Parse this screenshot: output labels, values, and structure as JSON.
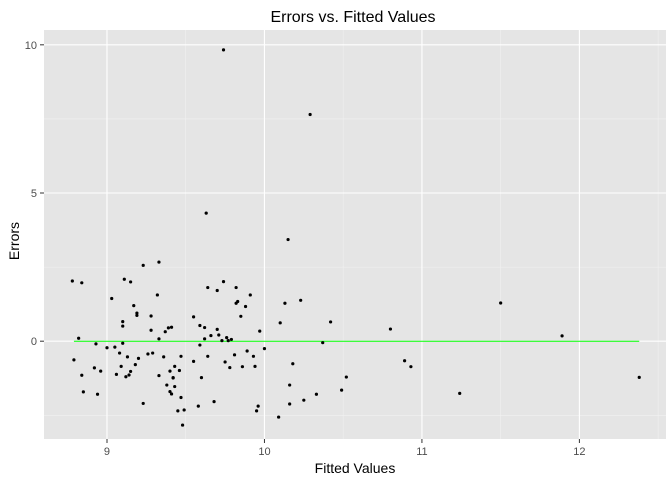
{
  "chart_data": {
    "type": "scatter",
    "title": "Errors vs. Fitted Values",
    "xlabel": "Fitted Values",
    "ylabel": "Errors",
    "xlim": [
      8.6,
      12.55
    ],
    "ylim": [
      -3.3,
      10.5
    ],
    "x_ticks": [
      9,
      10,
      11,
      12
    ],
    "y_ticks": [
      0,
      5,
      10
    ],
    "grid": true,
    "background": "#e5e5e5",
    "point_color": "#000000",
    "reference_line": {
      "y": 0,
      "x_from": 8.79,
      "x_to": 12.38,
      "color": "#00ff00"
    },
    "points": [
      [
        8.78,
        2.03
      ],
      [
        8.79,
        -0.63
      ],
      [
        8.82,
        0.1
      ],
      [
        8.84,
        1.97
      ],
      [
        8.84,
        -1.15
      ],
      [
        8.85,
        -1.71
      ],
      [
        8.92,
        -0.9
      ],
      [
        8.93,
        -0.09
      ],
      [
        8.94,
        -1.79
      ],
      [
        8.96,
        -1.01
      ],
      [
        9.0,
        -0.22
      ],
      [
        9.03,
        1.44
      ],
      [
        9.05,
        -0.2
      ],
      [
        9.06,
        -1.12
      ],
      [
        9.08,
        -0.4
      ],
      [
        9.09,
        -0.85
      ],
      [
        9.1,
        0.66
      ],
      [
        9.1,
        0.51
      ],
      [
        9.1,
        -0.07
      ],
      [
        9.11,
        2.09
      ],
      [
        9.12,
        -1.2
      ],
      [
        9.13,
        -0.53
      ],
      [
        9.14,
        -1.14
      ],
      [
        9.15,
        2.0
      ],
      [
        9.15,
        -1.02
      ],
      [
        9.17,
        1.2
      ],
      [
        9.18,
        -0.79
      ],
      [
        9.19,
        0.95
      ],
      [
        9.19,
        0.87
      ],
      [
        9.2,
        -0.58
      ],
      [
        9.23,
        2.56
      ],
      [
        9.23,
        -2.1
      ],
      [
        9.26,
        -0.43
      ],
      [
        9.28,
        0.37
      ],
      [
        9.28,
        0.85
      ],
      [
        9.29,
        -0.4
      ],
      [
        9.32,
        1.56
      ],
      [
        9.33,
        2.67
      ],
      [
        9.33,
        0.08
      ],
      [
        9.33,
        -1.16
      ],
      [
        9.36,
        -0.53
      ],
      [
        9.37,
        0.32
      ],
      [
        9.38,
        -1.48
      ],
      [
        9.39,
        0.45
      ],
      [
        9.4,
        -1.01
      ],
      [
        9.4,
        -1.7
      ],
      [
        9.41,
        -1.78
      ],
      [
        9.41,
        0.47
      ],
      [
        9.42,
        -1.24
      ],
      [
        9.42,
        -1.23
      ],
      [
        9.43,
        -1.53
      ],
      [
        9.43,
        -0.85
      ],
      [
        9.45,
        -2.35
      ],
      [
        9.46,
        -0.99
      ],
      [
        9.47,
        -1.9
      ],
      [
        9.47,
        -0.51
      ],
      [
        9.48,
        -2.83
      ],
      [
        9.49,
        -2.32
      ],
      [
        9.55,
        0.82
      ],
      [
        9.55,
        -0.68
      ],
      [
        9.58,
        -2.19
      ],
      [
        9.59,
        0.53
      ],
      [
        9.59,
        -0.13
      ],
      [
        9.6,
        -1.23
      ],
      [
        9.62,
        0.46
      ],
      [
        9.62,
        0.08
      ],
      [
        9.63,
        4.32
      ],
      [
        9.64,
        1.81
      ],
      [
        9.64,
        -0.51
      ],
      [
        9.66,
        0.19
      ],
      [
        9.68,
        -2.04
      ],
      [
        9.7,
        1.71
      ],
      [
        9.7,
        0.4
      ],
      [
        9.71,
        0.21
      ],
      [
        9.73,
        0.02
      ],
      [
        9.74,
        9.83
      ],
      [
        9.74,
        2.01
      ],
      [
        9.75,
        -0.7
      ],
      [
        9.76,
        0.12
      ],
      [
        9.77,
        0.02
      ],
      [
        9.78,
        -0.89
      ],
      [
        9.79,
        0.06
      ],
      [
        9.81,
        -0.46
      ],
      [
        9.82,
        1.81
      ],
      [
        9.82,
        1.28
      ],
      [
        9.83,
        1.34
      ],
      [
        9.85,
        0.84
      ],
      [
        9.86,
        -0.86
      ],
      [
        9.88,
        1.17
      ],
      [
        9.89,
        -0.33
      ],
      [
        9.91,
        1.56
      ],
      [
        9.93,
        -0.51
      ],
      [
        9.94,
        -0.85
      ],
      [
        9.95,
        -2.35
      ],
      [
        9.96,
        -2.19
      ],
      [
        9.97,
        0.34
      ],
      [
        10.0,
        -0.25
      ],
      [
        10.09,
        -2.56
      ],
      [
        10.1,
        0.62
      ],
      [
        10.13,
        1.28
      ],
      [
        10.15,
        3.43
      ],
      [
        10.16,
        -2.12
      ],
      [
        10.16,
        -1.48
      ],
      [
        10.18,
        -0.76
      ],
      [
        10.23,
        1.38
      ],
      [
        10.25,
        -1.99
      ],
      [
        10.29,
        7.65
      ],
      [
        10.33,
        -1.79
      ],
      [
        10.37,
        -0.05
      ],
      [
        10.42,
        0.65
      ],
      [
        10.49,
        -1.65
      ],
      [
        10.52,
        -1.21
      ],
      [
        10.8,
        0.41
      ],
      [
        10.89,
        -0.66
      ],
      [
        10.93,
        -0.86
      ],
      [
        11.24,
        -1.76
      ],
      [
        11.5,
        1.29
      ],
      [
        11.89,
        0.18
      ],
      [
        12.38,
        -1.22
      ]
    ]
  }
}
